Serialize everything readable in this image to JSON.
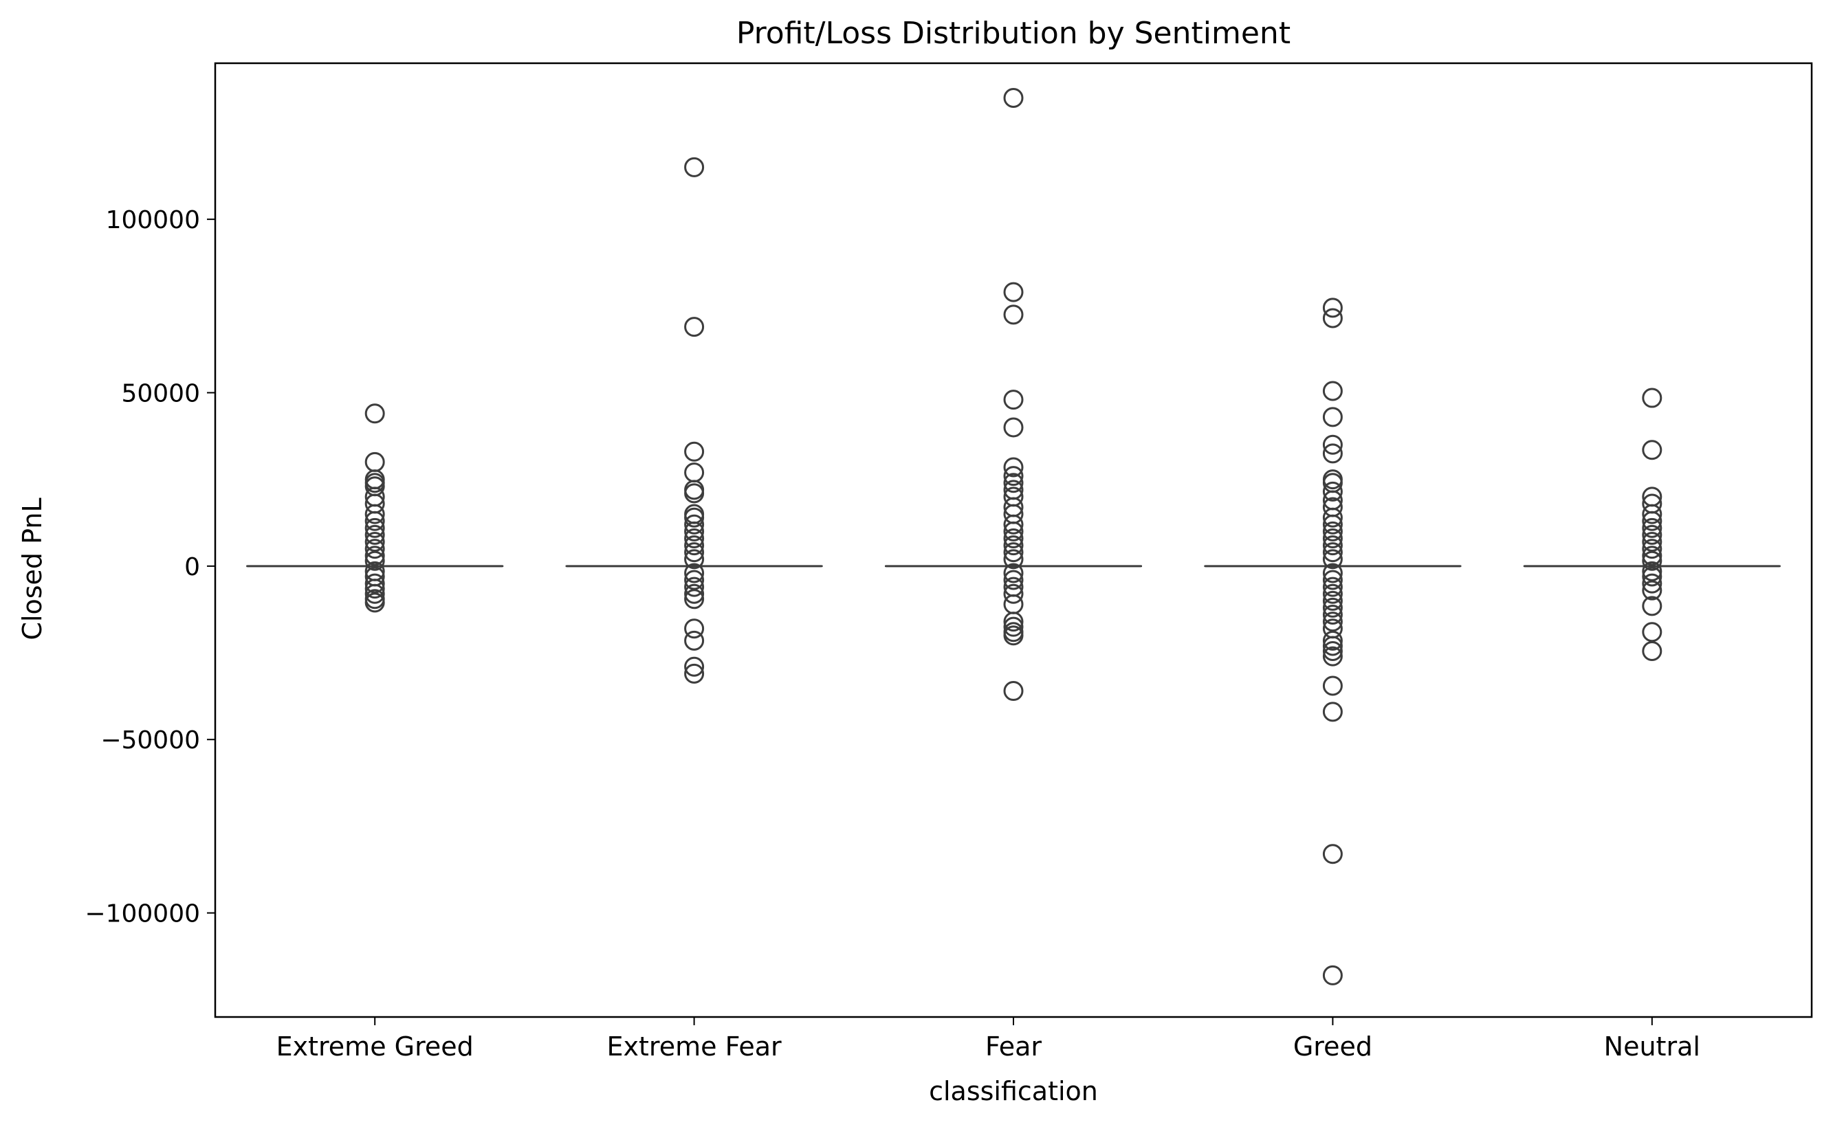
{
  "chart_data": {
    "type": "box",
    "title": "Profit/Loss Distribution by Sentiment",
    "xlabel": "classification",
    "ylabel": "Closed PnL",
    "ylim": [
      -130000,
      145000
    ],
    "yticks": [
      -100000,
      -50000,
      0,
      50000,
      100000
    ],
    "ytick_labels": [
      "−100000",
      "−50000",
      "0",
      "50000",
      "100000"
    ],
    "categories": [
      "Extreme Greed",
      "Extreme Fear",
      "Fear",
      "Greed",
      "Neutral"
    ],
    "grid": false,
    "colors": {
      "box": "#3d3d3d",
      "axis": "#000000",
      "background": "#ffffff"
    },
    "series": [
      {
        "category": "Extreme Greed",
        "median": 0,
        "q1": 0,
        "q3": 0,
        "whisker_low": 0,
        "whisker_high": 0,
        "outliers": [
          44000,
          30000,
          25000,
          24000,
          23000,
          20000,
          18000,
          15000,
          13000,
          11000,
          9000,
          7000,
          5000,
          3000,
          1500,
          -1500,
          -3000,
          -5000,
          -6500,
          -8000,
          -9500,
          -10500
        ]
      },
      {
        "category": "Extreme Fear",
        "median": 0,
        "q1": 0,
        "q3": 0,
        "whisker_low": 0,
        "whisker_high": 0,
        "outliers": [
          115000,
          69000,
          33000,
          27000,
          22000,
          21000,
          15000,
          14000,
          12000,
          10000,
          8000,
          6000,
          4000,
          2000,
          -2000,
          -4000,
          -6000,
          -8000,
          -9500,
          -18000,
          -21500,
          -29000,
          -31000
        ]
      },
      {
        "category": "Fear",
        "median": 0,
        "q1": 0,
        "q3": 0,
        "whisker_low": 0,
        "whisker_high": 0,
        "outliers": [
          135000,
          79000,
          72500,
          48000,
          40000,
          28500,
          26000,
          24000,
          22000,
          20000,
          17000,
          15000,
          12000,
          10000,
          8000,
          6000,
          4000,
          2000,
          -2000,
          -4000,
          -6000,
          -8000,
          -11000,
          -16000,
          -17500,
          -19000,
          -20000,
          -36000
        ]
      },
      {
        "category": "Greed",
        "median": 0,
        "q1": 0,
        "q3": 0,
        "whisker_low": 0,
        "whisker_high": 0,
        "outliers": [
          74500,
          71500,
          50500,
          43000,
          35000,
          32500,
          25000,
          24000,
          21500,
          19000,
          17000,
          14000,
          12000,
          10000,
          8000,
          6000,
          4000,
          2000,
          -2000,
          -4000,
          -6000,
          -8000,
          -10000,
          -12000,
          -14000,
          -16000,
          -18000,
          -21500,
          -23000,
          -24500,
          -26000,
          -34500,
          -42000,
          -83000,
          -118000
        ]
      },
      {
        "category": "Neutral",
        "median": 0,
        "q1": 0,
        "q3": 0,
        "whisker_low": 0,
        "whisker_high": 0,
        "outliers": [
          48500,
          33500,
          20000,
          18000,
          15000,
          13000,
          11000,
          9000,
          7000,
          5000,
          3000,
          1500,
          -1500,
          -3000,
          -5000,
          -7000,
          -11500,
          -19000,
          -24500
        ]
      }
    ]
  }
}
